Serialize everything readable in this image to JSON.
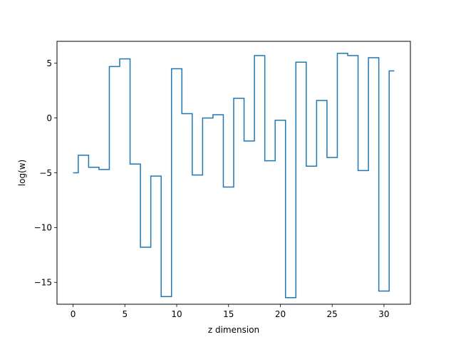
{
  "chart_data": {
    "type": "line",
    "drawstyle": "steps-mid",
    "title": "",
    "xlabel": "z dimension",
    "ylabel": "log(w)",
    "xlim": [
      -1.55,
      32.55
    ],
    "ylim": [
      -17.0,
      7.0
    ],
    "xticks": [
      0,
      5,
      10,
      15,
      20,
      25,
      30
    ],
    "yticks": [
      -15,
      -10,
      -5,
      0,
      5
    ],
    "ytick_labels": [
      "−15",
      "−10",
      "−5",
      "0",
      "5"
    ],
    "grid": false,
    "series": [
      {
        "color": "#1f77b4",
        "x": [
          0,
          1,
          2,
          3,
          4,
          5,
          6,
          7,
          8,
          9,
          10,
          11,
          12,
          13,
          14,
          15,
          16,
          17,
          18,
          19,
          20,
          21,
          22,
          23,
          24,
          25,
          26,
          27,
          28,
          29,
          30,
          31
        ],
        "y": [
          -5.0,
          -3.4,
          -4.5,
          -4.7,
          4.7,
          5.4,
          -4.2,
          -11.8,
          -5.3,
          -16.3,
          4.5,
          0.4,
          -5.2,
          0.0,
          0.3,
          -6.3,
          1.8,
          -2.1,
          5.7,
          -3.9,
          -0.2,
          -16.4,
          5.1,
          -4.4,
          1.6,
          -3.6,
          5.9,
          5.7,
          -4.8,
          5.5,
          -15.8,
          4.3
        ]
      }
    ]
  }
}
